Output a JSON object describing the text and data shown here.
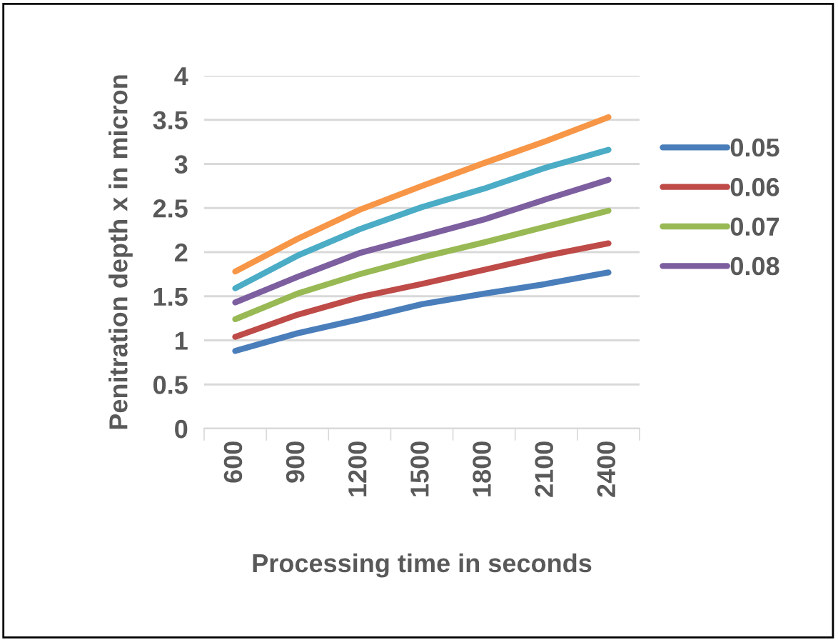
{
  "chart_data": {
    "type": "line",
    "xlabel": "Processing time in seconds",
    "ylabel": "Penitration depth x in micron",
    "categories": [
      "600",
      "900",
      "1200",
      "1500",
      "1800",
      "2100",
      "2400"
    ],
    "series": [
      {
        "name": "0.05",
        "color": "#4a7ebb",
        "values": [
          0.88,
          1.08,
          1.24,
          1.41,
          1.53,
          1.64,
          1.77
        ]
      },
      {
        "name": "0.06",
        "color": "#be4b48",
        "values": [
          1.04,
          1.29,
          1.49,
          1.64,
          1.8,
          1.96,
          2.1
        ]
      },
      {
        "name": "0.07",
        "color": "#98b954",
        "values": [
          1.24,
          1.53,
          1.75,
          1.94,
          2.11,
          2.29,
          2.47
        ]
      },
      {
        "name": "0.08",
        "color": "#7d5fa0",
        "values": [
          1.43,
          1.72,
          1.99,
          2.18,
          2.37,
          2.6,
          2.82
        ]
      },
      {
        "color": "#4bacc6",
        "values": [
          1.59,
          1.96,
          2.26,
          2.51,
          2.72,
          2.96,
          3.16
        ]
      },
      {
        "color": "#f79646",
        "values": [
          1.78,
          2.15,
          2.48,
          2.75,
          3.01,
          3.26,
          3.53
        ]
      }
    ],
    "ylim": [
      0,
      4
    ],
    "yticks": [
      0,
      0.5,
      1,
      1.5,
      2,
      2.5,
      3,
      3.5,
      4
    ],
    "grid": "y",
    "legend": "right",
    "marker": "none",
    "line_style": "solid"
  }
}
